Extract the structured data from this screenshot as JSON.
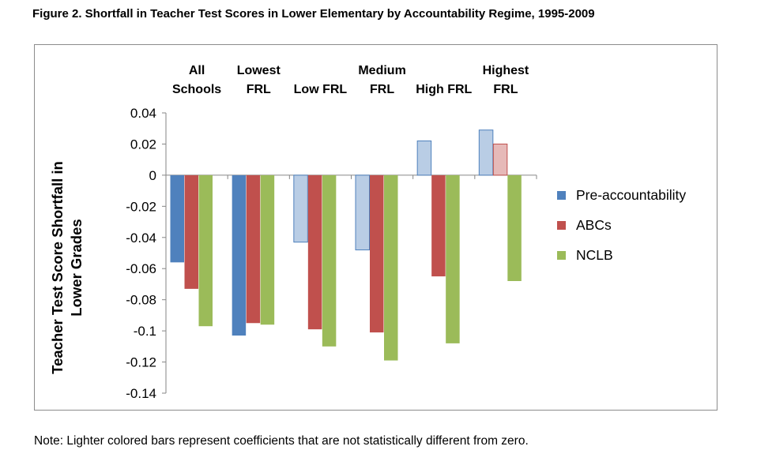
{
  "figure": {
    "title": "Figure 2. Shortfall in Teacher Test Scores in Lower Elementary by Accountability Regime, 1995-2009",
    "note": "Note: Lighter colored bars represent coefficients that are not statistically different from zero."
  },
  "colors": {
    "pre_accountability": "#4f81bd",
    "pre_accountability_light": "#b9cde5",
    "abcs": "#c0504d",
    "abcs_light": "#e6b9b8",
    "nclb": "#9bbb59",
    "nclb_light": "#d7e4bd",
    "axis": "#868686"
  },
  "chart_data": {
    "type": "bar",
    "categories": [
      [
        "All",
        "Schools"
      ],
      [
        "Lowest",
        "FRL"
      ],
      [
        "Low FRL"
      ],
      [
        "Medium",
        "FRL"
      ],
      [
        "High FRL"
      ],
      [
        "Highest",
        "FRL"
      ]
    ],
    "series": [
      {
        "name": "Pre-accountability",
        "values": [
          -0.056,
          -0.103,
          -0.043,
          -0.048,
          0.022,
          0.029
        ],
        "significant": [
          true,
          true,
          false,
          false,
          false,
          false
        ]
      },
      {
        "name": "ABCs",
        "values": [
          -0.073,
          -0.095,
          -0.099,
          -0.101,
          -0.065,
          0.02
        ],
        "significant": [
          true,
          true,
          true,
          true,
          true,
          false
        ]
      },
      {
        "name": "NCLB",
        "values": [
          -0.097,
          -0.096,
          -0.11,
          -0.119,
          -0.108,
          -0.068
        ],
        "significant": [
          true,
          true,
          true,
          true,
          true,
          true
        ]
      }
    ],
    "ylabel": [
      "Teacher Test Score Shortfall in",
      "Lower Grades"
    ],
    "ylim": [
      -0.14,
      0.04
    ],
    "yticks": [
      0.04,
      0.02,
      0,
      -0.02,
      -0.04,
      -0.06,
      -0.08,
      -0.1,
      -0.12,
      -0.14
    ],
    "ytick_labels": [
      "0.04",
      "0.02",
      "0",
      "-0.02",
      "-0.04",
      "-0.06",
      "-0.08",
      "-0.1",
      "-0.12",
      "-0.14"
    ],
    "grid": false,
    "category_labels_position": "top",
    "legend_position": "right"
  }
}
